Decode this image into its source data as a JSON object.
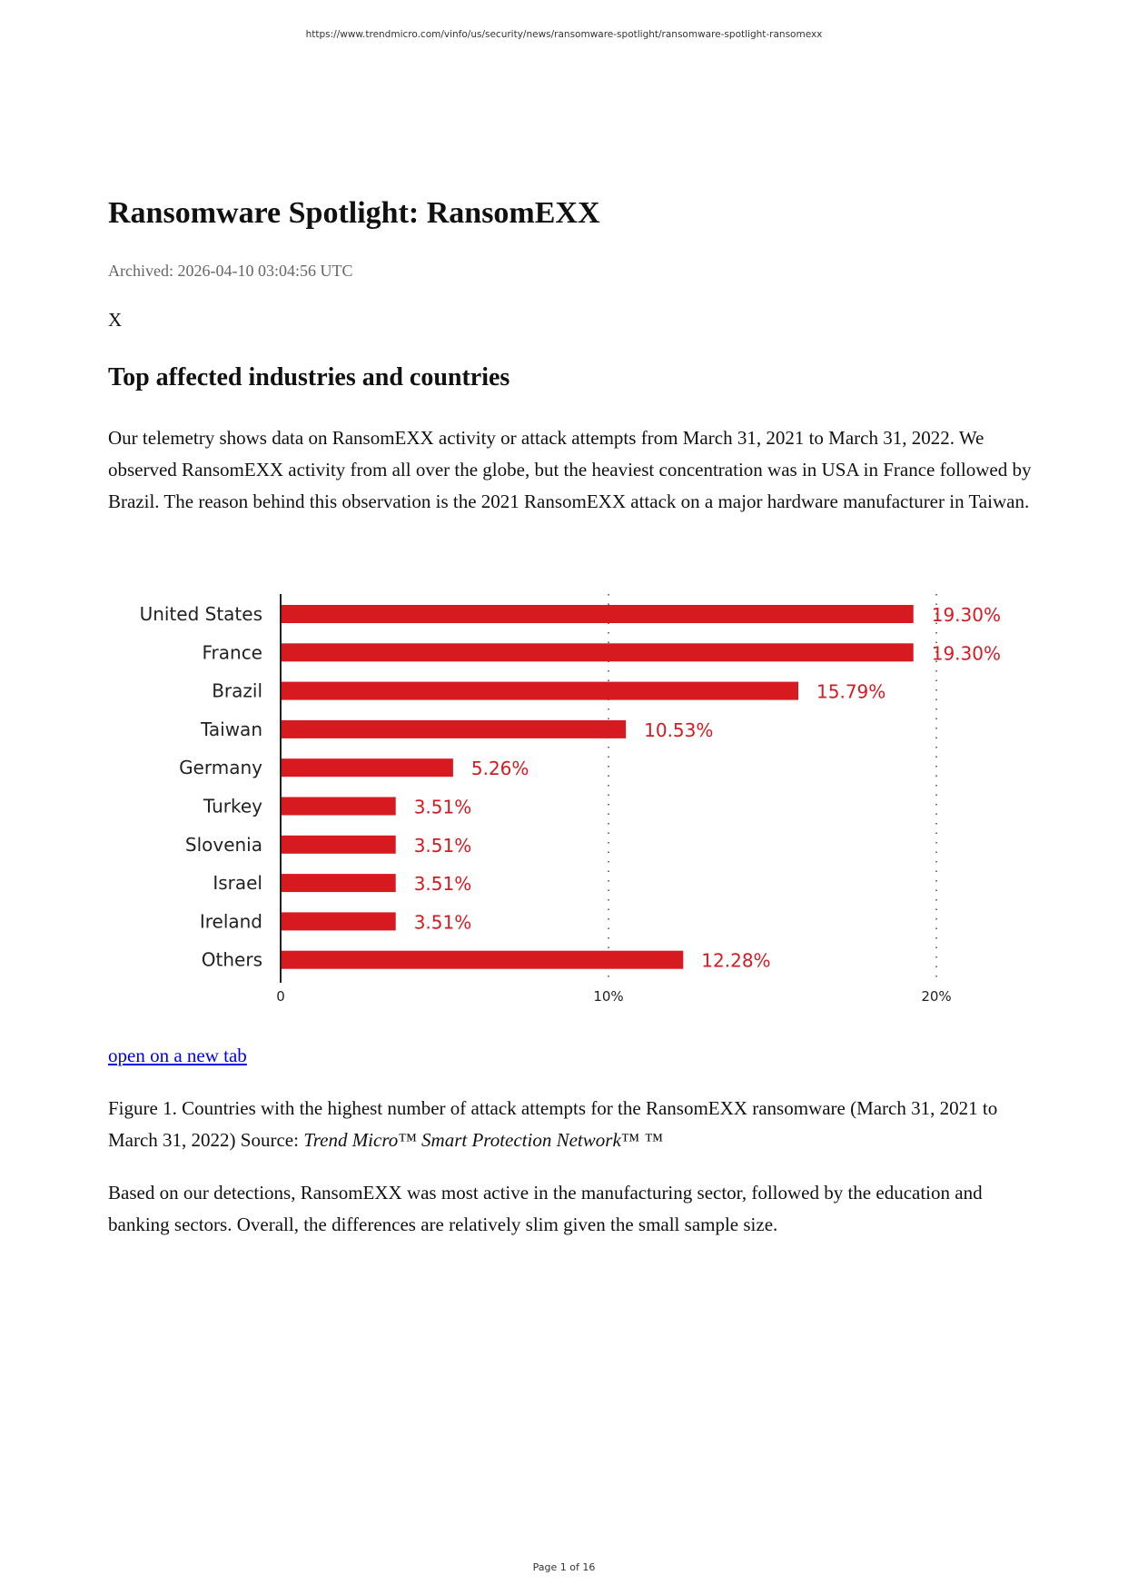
{
  "header": {
    "url": "https://www.trendmicro.com/vinfo/us/security/news/ransomware-spotlight/ransomware-spotlight-ransomexx"
  },
  "article": {
    "title": "Ransomware Spotlight: RansomEXX",
    "archived": "Archived: 2026-04-10 03:04:56 UTC",
    "x_label": "X",
    "section_heading": "Top affected industries and countries",
    "para1": "Our telemetry shows data on RansomEXX activity or attack attempts from March 31, 2021 to March 31, 2022. We observed RansomEXX activity from all over the globe, but the heaviest concentration was in USA in France followed by Brazil. The reason behind this observation is the 2021 RansomEXX attack on a major hardware manufacturer in Taiwan.",
    "link": "open on a new tab",
    "caption_pre": "Figure 1. Countries with the highest number of attack attempts for the RansomEXX ransomware (March 31, 2021 to March 31, 2022) Source: ",
    "caption_em": "Trend Micro™ Smart Protection Network",
    "caption_post": "™ ™",
    "para2": "Based on our detections, RansomEXX was most active in the manufacturing sector, followed by the education and banking sectors. Overall, the differences are relatively slim given the small sample size."
  },
  "chart_data": {
    "type": "bar",
    "orientation": "horizontal",
    "categories": [
      "United States",
      "France",
      "Brazil",
      "Taiwan",
      "Germany",
      "Turkey",
      "Slovenia",
      "Israel",
      "Ireland",
      "Others"
    ],
    "values": [
      19.3,
      19.3,
      15.79,
      10.53,
      5.26,
      3.51,
      3.51,
      3.51,
      3.51,
      12.28
    ],
    "data_labels": [
      "19.30%",
      "19.30%",
      "15.79%",
      "10.53%",
      "5.26%",
      "3.51%",
      "3.51%",
      "3.51%",
      "3.51%",
      "12.28%"
    ],
    "xlim": [
      0,
      20
    ],
    "xticks": [
      0,
      10,
      20
    ],
    "xtick_labels": [
      "0",
      "10%",
      "20%"
    ],
    "grid": "dotted vertical at 10% and 20%",
    "bar_color": "#d71920",
    "label_color": "#d71920"
  },
  "footer": {
    "page": "Page 1 of 16"
  }
}
